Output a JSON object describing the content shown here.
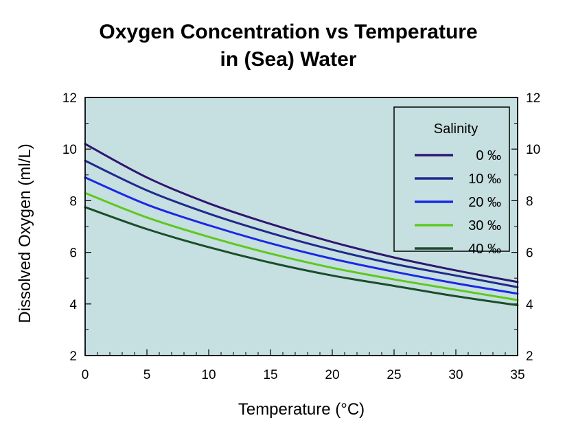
{
  "chart_data": {
    "type": "line",
    "title": [
      "Oxygen Concentration vs Temperature",
      "in (Sea) Water"
    ],
    "xlabel": "Temperature (°C)",
    "ylabel": "Dissolved Oxygen (ml/L)",
    "xlim": [
      0,
      35
    ],
    "ylim": [
      2,
      12
    ],
    "xticks": [
      0,
      5,
      10,
      15,
      20,
      25,
      30,
      35
    ],
    "yticks": [
      2,
      4,
      6,
      8,
      10,
      12
    ],
    "grid": false,
    "plot_background": "#c6dfe0",
    "legend": {
      "title": "Salinity",
      "placement": "top-right"
    },
    "x": [
      0,
      5,
      10,
      15,
      20,
      25,
      30,
      35
    ],
    "series": [
      {
        "name": "0 ‰",
        "color": "#2e1670",
        "values": [
          10.2,
          8.9,
          7.9,
          7.1,
          6.4,
          5.8,
          5.3,
          4.85
        ]
      },
      {
        "name": "10 ‰",
        "color": "#1f2a8c",
        "values": [
          9.55,
          8.4,
          7.5,
          6.75,
          6.1,
          5.55,
          5.1,
          4.65
        ]
      },
      {
        "name": "20 ‰",
        "color": "#1a28e6",
        "values": [
          8.9,
          7.85,
          7.05,
          6.35,
          5.75,
          5.25,
          4.8,
          4.4
        ]
      },
      {
        "name": "30 ‰",
        "color": "#5ec81e",
        "values": [
          8.3,
          7.35,
          6.6,
          5.95,
          5.4,
          4.95,
          4.55,
          4.15
        ]
      },
      {
        "name": "40 ‰",
        "color": "#1b4d2a",
        "values": [
          7.75,
          6.9,
          6.2,
          5.6,
          5.1,
          4.7,
          4.3,
          3.95
        ]
      }
    ]
  }
}
